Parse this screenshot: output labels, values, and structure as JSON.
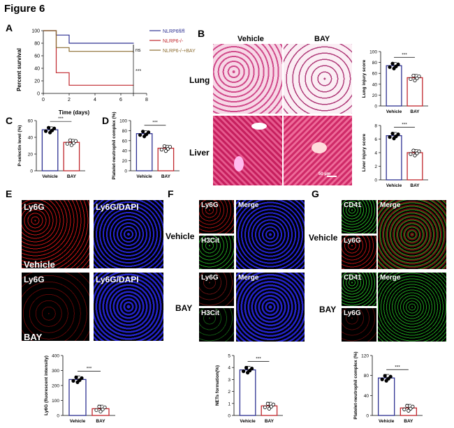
{
  "figure_title": "Figure 6",
  "panels": {
    "A": {
      "label": "A",
      "ylabel": "Percent survival",
      "xlabel": "Time (days)",
      "legend": [
        "NLRP6fl/fl",
        "NLRP6-/-",
        "NLRP6-/-+BAY"
      ],
      "sig1": "ns",
      "sig2": "***"
    },
    "B": {
      "label": "B",
      "col1": "Vehicle",
      "col2": "BAY",
      "row1": "Lung",
      "row2": "Liver",
      "scalebar": "50 µm"
    },
    "C": {
      "label": "C"
    },
    "D": {
      "label": "D"
    },
    "E": {
      "label": "E",
      "tl": "Ly6G",
      "tr": "Ly6G/DAPI",
      "bl": "Ly6G",
      "br": "Ly6G/DAPI",
      "vehicle": "Vehicle",
      "bay": "BAY"
    },
    "F": {
      "label": "F",
      "side1": "Vehicle",
      "side2": "BAY",
      "a": "Ly6G",
      "b": "H3Cit",
      "m": "Merge"
    },
    "G": {
      "label": "G",
      "side1": "Vehicle",
      "side2": "BAY",
      "a": "CD41",
      "b": "Ly6G",
      "m": "Merge"
    }
  },
  "chart_data": [
    {
      "id": "A",
      "type": "line",
      "xlabel": "Time (days)",
      "ylabel": "Percent survival",
      "xlim": [
        0,
        8
      ],
      "ylim": [
        0,
        100
      ],
      "xticks": [
        "0",
        "2",
        "4",
        "6",
        "8"
      ],
      "yticks": [
        "0",
        "20",
        "40",
        "60",
        "80",
        "100"
      ],
      "series": [
        {
          "name": "NLRP6fl/fl",
          "color": "#2e3192",
          "x": [
            0,
            1,
            2,
            7
          ],
          "y": [
            100,
            93,
            80,
            80
          ]
        },
        {
          "name": "NLRP6-/-",
          "color": "#c1272d",
          "x": [
            0,
            1,
            2,
            7
          ],
          "y": [
            100,
            33,
            13,
            13
          ]
        },
        {
          "name": "NLRP6-/-+BAY",
          "color": "#8c6d31",
          "x": [
            0,
            1,
            2,
            7
          ],
          "y": [
            100,
            73,
            67,
            67
          ]
        }
      ]
    },
    {
      "id": "B-lung",
      "type": "bar",
      "ylabel": "Lung injury score",
      "ylim": [
        0,
        100
      ],
      "yticks": [
        "0",
        "20",
        "40",
        "60",
        "80",
        "100"
      ],
      "categories": [
        "Vehicle",
        "BAY"
      ],
      "values": [
        74,
        52
      ],
      "sig": "***"
    },
    {
      "id": "B-liver",
      "type": "bar",
      "ylabel": "Liver injury score",
      "ylim": [
        0,
        8
      ],
      "yticks": [
        "0",
        "2",
        "4",
        "6",
        "8"
      ],
      "categories": [
        "Vehicle",
        "BAY"
      ],
      "values": [
        6.5,
        4.0
      ],
      "sig": "***"
    },
    {
      "id": "C",
      "type": "bar",
      "ylabel": "P-selectin level (%)",
      "ylim": [
        0,
        60
      ],
      "yticks": [
        "0",
        "20",
        "40",
        "60"
      ],
      "categories": [
        "Vehicle",
        "BAY"
      ],
      "values": [
        49,
        34
      ],
      "sig": "***"
    },
    {
      "id": "D",
      "type": "bar",
      "ylabel": "Platelet-neutrophil complex (%)",
      "ylim": [
        0,
        100
      ],
      "yticks": [
        "0",
        "20",
        "40",
        "60",
        "80",
        "100"
      ],
      "categories": [
        "Vehicle",
        "BAY"
      ],
      "values": [
        74,
        45
      ],
      "sig": "***"
    },
    {
      "id": "E",
      "type": "bar",
      "ylabel": "Ly6G (fluorescent intensity)",
      "ylim": [
        0,
        400
      ],
      "yticks": [
        "0",
        "100",
        "200",
        "300",
        "400"
      ],
      "categories": [
        "Vehicle",
        "BAY"
      ],
      "values": [
        240,
        45
      ],
      "sig": "***"
    },
    {
      "id": "F",
      "type": "bar",
      "ylabel": "NETs formation(%)",
      "ylim": [
        0,
        5
      ],
      "yticks": [
        "0",
        "1",
        "2",
        "3",
        "4",
        "5"
      ],
      "categories": [
        "Vehicle",
        "BAY"
      ],
      "values": [
        3.8,
        0.8
      ],
      "sig": "***"
    },
    {
      "id": "G",
      "type": "bar",
      "ylabel": "Platelet-neutrophil complex (%)",
      "ylim": [
        0,
        120
      ],
      "yticks": [
        "0",
        "40",
        "80",
        "120"
      ],
      "categories": [
        "Vehicle",
        "BAY"
      ],
      "values": [
        75,
        15
      ],
      "sig": "***"
    }
  ],
  "colors": {
    "vehicle": "#2e3192",
    "bay": "#c1272d",
    "he_pink": "#e8a0bf",
    "liver_pink": "#d42a6a"
  }
}
